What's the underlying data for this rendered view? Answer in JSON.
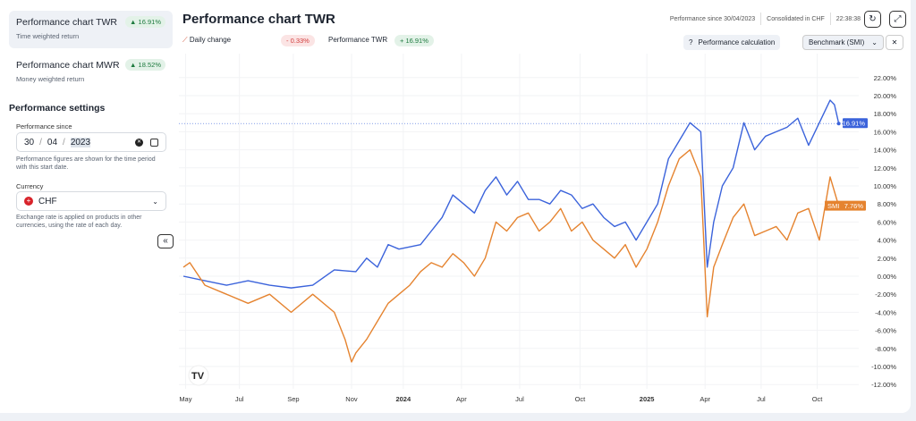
{
  "sidebar": {
    "charts": [
      {
        "title": "Performance chart TWR",
        "subtitle": "Time weighted return",
        "value": "▲ 16.91%"
      },
      {
        "title": "Performance chart MWR",
        "subtitle": "Money weighted return",
        "value": "▲ 18.52%"
      }
    ],
    "settings_title": "Performance settings",
    "since_label": "Performance since",
    "date": {
      "day": "30",
      "month": "04",
      "year": "2023",
      "sep": "/"
    },
    "since_help": "Performance figures are shown for the time period with this start date.",
    "currency_label": "Currency",
    "currency": "CHF",
    "currency_help": "Exchange rate is applied on products in other currencies, using the rate of each day.",
    "collapse": "«"
  },
  "header": {
    "title": "Performance chart TWR",
    "since": "Performance since 30/04/2023",
    "consolidated": "Consolidated in CHF",
    "time": "22:38:38",
    "daily_change_label": "Daily change",
    "daily_change": "- 0.33%",
    "perf_label": "Performance TWR",
    "perf_value": "+ 16.91%",
    "calc_button": "Performance calculation",
    "benchmark": "Benchmark (SMI)",
    "close": "✕"
  },
  "colors": {
    "twr": "#3b63db",
    "smi": "#e5832f",
    "pos": "#1d7a3e",
    "neg": "#d23c3c"
  },
  "chart_data": {
    "type": "line",
    "title": "Performance chart TWR",
    "xlabel": "",
    "ylabel": "",
    "x_unit": "months since 30/04/2023",
    "ylim": [
      -12,
      22
    ],
    "y_ticks": [
      "22.00%",
      "20.00%",
      "18.00%",
      "16.00%",
      "14.00%",
      "12.00%",
      "10.00%",
      "8.00%",
      "6.00%",
      "4.00%",
      "2.00%",
      "0.00%",
      "-2.00%",
      "-4.00%",
      "-6.00%",
      "-8.00%",
      "-10.00%",
      "-12.00%"
    ],
    "x_ticks": [
      {
        "label": "May",
        "t": 0.1
      },
      {
        "label": "Jul",
        "t": 2.6
      },
      {
        "label": "Sep",
        "t": 5.1
      },
      {
        "label": "Nov",
        "t": 7.8
      },
      {
        "label": "2024",
        "t": 10.2,
        "bold": true
      },
      {
        "label": "Apr",
        "t": 12.9
      },
      {
        "label": "Jul",
        "t": 15.6
      },
      {
        "label": "Oct",
        "t": 18.4
      },
      {
        "label": "2025",
        "t": 21.5,
        "bold": true
      },
      {
        "label": "Apr",
        "t": 24.2
      },
      {
        "label": "Jul",
        "t": 26.8
      },
      {
        "label": "Oct",
        "t": 29.4
      }
    ],
    "series": [
      {
        "name": "TWR",
        "last_label": "16.91%",
        "x": [
          0,
          1,
          2,
          3,
          4,
          5,
          6,
          7,
          8,
          8.5,
          9,
          9.5,
          10,
          11,
          11.5,
          12,
          12.5,
          13,
          13.5,
          14,
          14.5,
          15,
          15.5,
          16,
          16.5,
          17,
          17.5,
          18,
          18.5,
          19,
          19.5,
          20,
          20.5,
          21,
          21.5,
          22,
          22.5,
          23,
          23.5,
          24,
          24.3,
          24.6,
          25,
          25.5,
          26,
          26.5,
          27,
          27.5,
          28,
          28.5,
          29,
          29.5,
          30,
          30.2,
          30.4
        ],
        "y": [
          0,
          -0.5,
          -1,
          -0.5,
          -1,
          -1.3,
          -1,
          0.7,
          0.5,
          2,
          1,
          3.5,
          3,
          3.5,
          5,
          6.5,
          9,
          8,
          7,
          9.5,
          11,
          9,
          10.5,
          8.5,
          8.5,
          8,
          9.5,
          9,
          7.5,
          8,
          6.5,
          5.5,
          6,
          4,
          6,
          8,
          13,
          15,
          17,
          16,
          1,
          6,
          10,
          12,
          17,
          14,
          15.5,
          16,
          16.5,
          17.5,
          14.5,
          17,
          19.5,
          19,
          16.91
        ]
      },
      {
        "name": "SMI",
        "last_label": "7.76%",
        "x": [
          0,
          0.3,
          1,
          2,
          3,
          4,
          5,
          6,
          7,
          7.5,
          7.8,
          8,
          8.5,
          9,
          9.5,
          10,
          10.5,
          11,
          11.5,
          12,
          12.5,
          13,
          13.5,
          14,
          14.5,
          15,
          15.5,
          16,
          16.5,
          17,
          17.5,
          18,
          18.5,
          19,
          19.5,
          20,
          20.5,
          21,
          21.5,
          22,
          22.5,
          23,
          23.5,
          24,
          24.3,
          24.6,
          25,
          25.5,
          26,
          26.5,
          27,
          27.5,
          28,
          28.5,
          29,
          29.5,
          30,
          30.4
        ],
        "y": [
          1,
          1.5,
          -1,
          -2,
          -3,
          -2,
          -4,
          -2,
          -4,
          -7,
          -9.5,
          -8.5,
          -7,
          -5,
          -3,
          -2,
          -1,
          0.5,
          1.5,
          1,
          2.5,
          1.5,
          0,
          2,
          6,
          5,
          6.5,
          7,
          5,
          6,
          7.5,
          5,
          6,
          4,
          3,
          2,
          3.5,
          1,
          3,
          6,
          10,
          13,
          14,
          11,
          -4.5,
          1,
          3.5,
          6.5,
          8,
          4.5,
          5,
          5.5,
          4,
          7,
          7.5,
          4,
          11,
          7.76
        ]
      }
    ],
    "grid": true,
    "legend": "none"
  }
}
